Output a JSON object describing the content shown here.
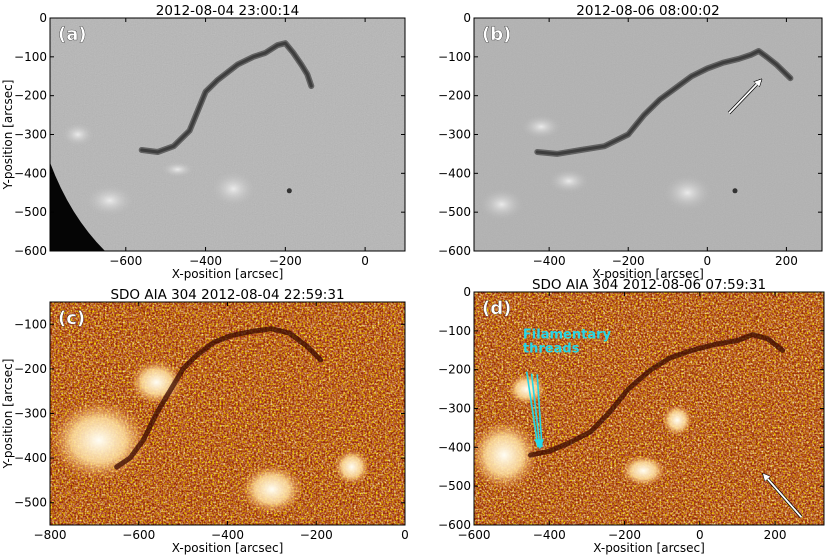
{
  "figure": {
    "panels": [
      {
        "id": "a",
        "label": "(a)",
        "title": "2012-08-04 23:00:14",
        "xlabel": "X-position [arcsec]",
        "ylabel": "Y-position [arcsec]",
        "xlim": [
          -790,
          100
        ],
        "ylim": [
          -600,
          0
        ],
        "xticks": [
          -600,
          -400,
          -200,
          0
        ],
        "yticks": [
          0,
          -100,
          -200,
          -300,
          -400,
          -500,
          -600
        ],
        "style": "halpha",
        "filament_path": [
          [
            -560,
            -340
          ],
          [
            -520,
            -345
          ],
          [
            -480,
            -330
          ],
          [
            -440,
            -290
          ],
          [
            -420,
            -240
          ],
          [
            -400,
            -190
          ],
          [
            -370,
            -160
          ],
          [
            -320,
            -120
          ],
          [
            -280,
            -100
          ],
          [
            -250,
            -90
          ],
          [
            -220,
            -70
          ],
          [
            -200,
            -65
          ],
          [
            -180,
            -90
          ],
          [
            -160,
            -120
          ],
          [
            -145,
            -145
          ],
          [
            -135,
            -175
          ]
        ]
      },
      {
        "id": "b",
        "label": "(b)",
        "title": "2012-08-06 08:00:02",
        "xlabel": "X-position [arcsec]",
        "ylabel": "",
        "xlim": [
          -590,
          290
        ],
        "ylim": [
          -600,
          0
        ],
        "xticks": [
          -400,
          -200,
          0,
          200
        ],
        "yticks": [
          0,
          -100,
          -200,
          -300,
          -400,
          -500,
          -600
        ],
        "style": "halpha",
        "filament_path": [
          [
            -430,
            -345
          ],
          [
            -380,
            -350
          ],
          [
            -320,
            -340
          ],
          [
            -260,
            -330
          ],
          [
            -200,
            -300
          ],
          [
            -160,
            -250
          ],
          [
            -120,
            -210
          ],
          [
            -80,
            -180
          ],
          [
            -40,
            -150
          ],
          [
            0,
            -130
          ],
          [
            40,
            -115
          ],
          [
            80,
            -105
          ],
          [
            110,
            -95
          ],
          [
            130,
            -85
          ],
          [
            150,
            -100
          ],
          [
            175,
            -120
          ],
          [
            210,
            -155
          ]
        ],
        "arrow": {
          "from": [
            55,
            -245
          ],
          "to": [
            135,
            -160
          ]
        }
      },
      {
        "id": "c",
        "label": "(c)",
        "title": "SDO AIA 304 2012-08-04 22:59:31",
        "xlabel": "X-position [arcsec]",
        "ylabel": "Y-position [arcsec]",
        "xlim": [
          -800,
          0
        ],
        "ylim": [
          -550,
          -50
        ],
        "xticks": [
          -800,
          -600,
          -400,
          -200,
          0
        ],
        "yticks": [
          -100,
          -200,
          -300,
          -400,
          -500
        ],
        "style": "aia304",
        "filament_path": [
          [
            -650,
            -420
          ],
          [
            -620,
            -400
          ],
          [
            -590,
            -360
          ],
          [
            -560,
            -300
          ],
          [
            -530,
            -250
          ],
          [
            -500,
            -200
          ],
          [
            -470,
            -170
          ],
          [
            -430,
            -140
          ],
          [
            -390,
            -125
          ],
          [
            -340,
            -115
          ],
          [
            -300,
            -110
          ],
          [
            -260,
            -120
          ],
          [
            -220,
            -150
          ],
          [
            -190,
            -180
          ]
        ]
      },
      {
        "id": "d",
        "label": "(d)",
        "title": "SDO AIA 304 2012-08-06 07:59:31",
        "xlabel": "X-position [arcsec]",
        "ylabel": "",
        "xlim": [
          -600,
          330
        ],
        "ylim": [
          -600,
          0
        ],
        "xticks": [
          -600,
          -400,
          -200,
          0,
          200
        ],
        "yticks": [
          0,
          -100,
          -200,
          -300,
          -400,
          -500,
          -600
        ],
        "style": "aia304",
        "filament_path": [
          [
            -450,
            -420
          ],
          [
            -400,
            -410
          ],
          [
            -350,
            -390
          ],
          [
            -290,
            -360
          ],
          [
            -240,
            -310
          ],
          [
            -190,
            -250
          ],
          [
            -130,
            -200
          ],
          [
            -80,
            -170
          ],
          [
            -20,
            -150
          ],
          [
            40,
            -135
          ],
          [
            100,
            -125
          ],
          [
            140,
            -110
          ],
          [
            180,
            -120
          ],
          [
            220,
            -150
          ]
        ],
        "annotation": "Filamentary\nthreads",
        "annotation_color": "#27d6e6",
        "arrow": {
          "from": [
            270,
            -580
          ],
          "to": [
            170,
            -470
          ]
        }
      }
    ]
  }
}
